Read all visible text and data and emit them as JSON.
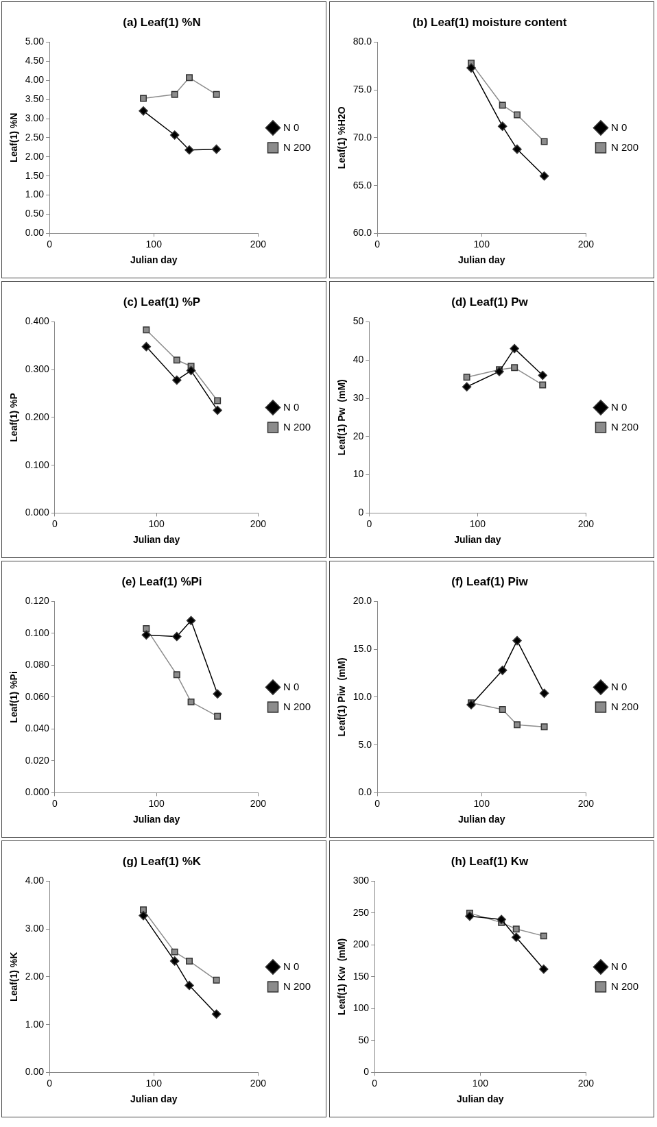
{
  "chart_data": [
    {
      "type": "line",
      "title": "(a) Leaf(1) %N",
      "xlabel": "Julian day",
      "ylabel": "Leaf(1) %N",
      "x": [
        90,
        120,
        134,
        160
      ],
      "xlim": [
        0,
        200
      ],
      "xticks": [
        0,
        100,
        200
      ],
      "ylim": [
        0,
        5
      ],
      "yticks": [
        {
          "value": 0,
          "label": "0.00"
        },
        {
          "value": 0.5,
          "label": "0.50"
        },
        {
          "value": 1,
          "label": "1.00"
        },
        {
          "value": 1.5,
          "label": "1.50"
        },
        {
          "value": 2,
          "label": "2.00"
        },
        {
          "value": 2.5,
          "label": "2.50"
        },
        {
          "value": 3,
          "label": "3.00"
        },
        {
          "value": 3.5,
          "label": "3.50"
        },
        {
          "value": 4,
          "label": "4.00"
        },
        {
          "value": 4.5,
          "label": "4.50"
        },
        {
          "value": 5,
          "label": "5.00"
        }
      ],
      "grid": false,
      "legend": "right",
      "series": [
        {
          "name": "N 0",
          "color": "#000000",
          "marker": "diamond",
          "values": [
            3.2,
            2.57,
            2.18,
            2.2
          ]
        },
        {
          "name": "N 200",
          "color": "#8c8c8c",
          "marker": "square",
          "values": [
            3.53,
            3.63,
            4.07,
            3.63
          ]
        }
      ]
    },
    {
      "type": "line",
      "title": "(b) Leaf(1) moisture content",
      "xlabel": "Julian day",
      "ylabel": "Leaf(1) %H2O",
      "x": [
        90,
        120,
        134,
        160
      ],
      "xlim": [
        0,
        200
      ],
      "xticks": [
        0,
        100,
        200
      ],
      "ylim": [
        60,
        80
      ],
      "yticks": [
        {
          "value": 60,
          "label": "60.0"
        },
        {
          "value": 65,
          "label": "65.0"
        },
        {
          "value": 70,
          "label": "70.0"
        },
        {
          "value": 75,
          "label": "75.0"
        },
        {
          "value": 80,
          "label": "80.0"
        }
      ],
      "grid": false,
      "legend": "right",
      "series": [
        {
          "name": "N 0",
          "color": "#000000",
          "marker": "diamond",
          "values": [
            77.3,
            71.2,
            68.8,
            66.0
          ]
        },
        {
          "name": "N 200",
          "color": "#8c8c8c",
          "marker": "square",
          "values": [
            77.8,
            73.4,
            72.4,
            69.6
          ]
        }
      ]
    },
    {
      "type": "line",
      "title": "(c) Leaf(1) %P",
      "xlabel": "Julian day",
      "ylabel": "Leaf(1) %P",
      "x": [
        90,
        120,
        134,
        160
      ],
      "xlim": [
        0,
        200
      ],
      "xticks": [
        0,
        100,
        200
      ],
      "ylim": [
        0,
        0.4
      ],
      "yticks": [
        {
          "value": 0,
          "label": "0.000"
        },
        {
          "value": 0.1,
          "label": "0.100"
        },
        {
          "value": 0.2,
          "label": "0.200"
        },
        {
          "value": 0.3,
          "label": "0.300"
        },
        {
          "value": 0.4,
          "label": "0.400"
        }
      ],
      "grid": false,
      "legend": "right",
      "series": [
        {
          "name": "N 0",
          "color": "#000000",
          "marker": "diamond",
          "values": [
            0.348,
            0.278,
            0.298,
            0.215
          ]
        },
        {
          "name": "N 200",
          "color": "#8c8c8c",
          "marker": "square",
          "values": [
            0.383,
            0.32,
            0.307,
            0.235
          ]
        }
      ]
    },
    {
      "type": "line",
      "title": "(d) Leaf(1) Pw",
      "xlabel": "Julian day",
      "ylabel": "Leaf(1) Pw  (mM)",
      "x": [
        90,
        120,
        134,
        160
      ],
      "xlim": [
        0,
        200
      ],
      "xticks": [
        0,
        100,
        200
      ],
      "ylim": [
        0,
        50
      ],
      "yticks": [
        0,
        10,
        20,
        30,
        40,
        50
      ],
      "grid": false,
      "legend": "right",
      "series": [
        {
          "name": "N 0",
          "color": "#000000",
          "marker": "diamond",
          "values": [
            33,
            37,
            43,
            36
          ]
        },
        {
          "name": "N 200",
          "color": "#8c8c8c",
          "marker": "square",
          "values": [
            35.5,
            37.5,
            38,
            33.5
          ]
        }
      ]
    },
    {
      "type": "line",
      "title": "(e) Leaf(1) %Pi",
      "xlabel": "Julian day",
      "ylabel": "Leaf(1) %Pi",
      "x": [
        90,
        120,
        134,
        160
      ],
      "xlim": [
        0,
        200
      ],
      "xticks": [
        0,
        100,
        200
      ],
      "ylim": [
        0,
        0.12
      ],
      "yticks": [
        {
          "value": 0,
          "label": "0.000"
        },
        {
          "value": 0.02,
          "label": "0.020"
        },
        {
          "value": 0.04,
          "label": "0.040"
        },
        {
          "value": 0.06,
          "label": "0.060"
        },
        {
          "value": 0.08,
          "label": "0.080"
        },
        {
          "value": 0.1,
          "label": "0.100"
        },
        {
          "value": 0.12,
          "label": "0.120"
        }
      ],
      "grid": false,
      "legend": "right",
      "series": [
        {
          "name": "N 0",
          "color": "#000000",
          "marker": "diamond",
          "values": [
            0.099,
            0.098,
            0.108,
            0.062
          ]
        },
        {
          "name": "N 200",
          "color": "#8c8c8c",
          "marker": "square",
          "values": [
            0.103,
            0.074,
            0.057,
            0.048
          ]
        }
      ]
    },
    {
      "type": "line",
      "title": "(f) Leaf(1) Piw",
      "xlabel": "Julian day",
      "ylabel": "Leaf(1) Piw  (mM)",
      "x": [
        90,
        120,
        134,
        160
      ],
      "xlim": [
        0,
        200
      ],
      "xticks": [
        0,
        100,
        200
      ],
      "ylim": [
        0,
        20
      ],
      "yticks": [
        {
          "value": 0,
          "label": "0.0"
        },
        {
          "value": 5,
          "label": "5.0"
        },
        {
          "value": 10,
          "label": "10.0"
        },
        {
          "value": 15,
          "label": "15.0"
        },
        {
          "value": 20,
          "label": "20.0"
        }
      ],
      "grid": false,
      "legend": "right",
      "series": [
        {
          "name": "N 0",
          "color": "#000000",
          "marker": "diamond",
          "values": [
            9.2,
            12.8,
            15.9,
            10.4
          ]
        },
        {
          "name": "N 200",
          "color": "#8c8c8c",
          "marker": "square",
          "values": [
            9.4,
            8.7,
            7.1,
            6.9
          ]
        }
      ]
    },
    {
      "type": "line",
      "title": "(g) Leaf(1) %K",
      "xlabel": "Julian day",
      "ylabel": "Leaf(1) %K",
      "x": [
        90,
        120,
        134,
        160
      ],
      "xlim": [
        0,
        200
      ],
      "xticks": [
        0,
        100,
        200
      ],
      "ylim": [
        0,
        4
      ],
      "yticks": [
        {
          "value": 0,
          "label": "0.00"
        },
        {
          "value": 1,
          "label": "1.00"
        },
        {
          "value": 2,
          "label": "2.00"
        },
        {
          "value": 3,
          "label": "3.00"
        },
        {
          "value": 4,
          "label": "4.00"
        }
      ],
      "grid": false,
      "legend": "right",
      "series": [
        {
          "name": "N 0",
          "color": "#000000",
          "marker": "diamond",
          "values": [
            3.28,
            2.33,
            1.82,
            1.22
          ]
        },
        {
          "name": "N 200",
          "color": "#8c8c8c",
          "marker": "square",
          "values": [
            3.4,
            2.52,
            2.33,
            1.93
          ]
        }
      ]
    },
    {
      "type": "line",
      "title": "(h) Leaf(1) Kw",
      "xlabel": "Julian day",
      "ylabel": "Leaf(1) Kw  (mM)",
      "x": [
        90,
        120,
        134,
        160
      ],
      "xlim": [
        0,
        200
      ],
      "xticks": [
        0,
        100,
        200
      ],
      "ylim": [
        0,
        300
      ],
      "yticks": [
        0,
        50,
        100,
        150,
        200,
        250,
        300
      ],
      "grid": false,
      "legend": "right",
      "series": [
        {
          "name": "N 0",
          "color": "#000000",
          "marker": "diamond",
          "values": [
            245,
            240,
            212,
            162
          ]
        },
        {
          "name": "N 200",
          "color": "#8c8c8c",
          "marker": "square",
          "values": [
            250,
            235,
            225,
            214
          ]
        }
      ]
    }
  ]
}
